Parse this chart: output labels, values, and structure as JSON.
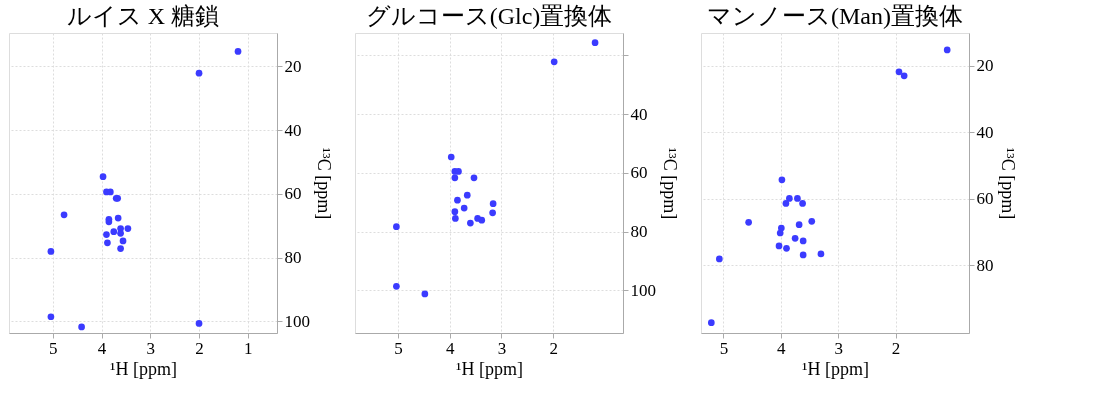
{
  "chart_data": [
    {
      "type": "scatter",
      "title": "ルイス X 糖鎖",
      "xlabel": "¹H [ppm]",
      "ylabel": "¹³C [ppm]",
      "xlim": [
        5.9,
        0.4
      ],
      "xticks": [
        5,
        4,
        3,
        2,
        1
      ],
      "ylim": [
        103.7,
        9.5
      ],
      "yticks": [
        20,
        40,
        60,
        80,
        100
      ],
      "grid": true,
      "marker": "circle",
      "series": [
        {
          "color": "#3b3bff",
          "x": [
            1.2,
            2.0,
            3.97,
            3.9,
            3.82,
            3.7,
            3.67,
            4.77,
            3.66,
            3.85,
            3.85,
            3.61,
            3.46,
            3.75,
            3.61,
            3.9,
            3.56,
            3.88,
            3.61,
            5.04,
            5.04,
            4.41,
            2.0
          ],
          "values": [
            15.3,
            22.1,
            54.6,
            59.4,
            59.4,
            61.4,
            61.4,
            66.6,
            67.6,
            68.0,
            68.8,
            70.9,
            70.9,
            71.9,
            72.4,
            72.8,
            74.8,
            75.4,
            77.2,
            78.1,
            98.6,
            101.8,
            100.7
          ]
        }
      ]
    },
    {
      "type": "scatter",
      "title": "グルコース(Glc)置換体",
      "xlabel": "¹H [ppm]",
      "ylabel": "¹³C [ppm]",
      "xlim": [
        5.83,
        0.65
      ],
      "xticks": [
        5,
        4,
        3,
        2
      ],
      "ylim": [
        114.5,
        12.4
      ],
      "yticks": [
        {
          "value": 20,
          "label": null
        },
        40,
        60,
        80,
        100
      ],
      "grid": true,
      "marker": "circle",
      "series": [
        {
          "color": "#3b3bff",
          "x": [
            1.19,
            1.98,
            3.97,
            3.9,
            3.83,
            3.9,
            3.53,
            3.66,
            3.85,
            3.16,
            3.72,
            3.9,
            3.17,
            3.89,
            3.46,
            3.38,
            3.6,
            5.03,
            5.03,
            4.48
          ],
          "values": [
            15.7,
            22.2,
            54.6,
            59.5,
            59.5,
            61.7,
            61.7,
            67.6,
            69.3,
            70.5,
            72.0,
            73.2,
            73.6,
            75.5,
            75.5,
            76.1,
            77.1,
            78.3,
            98.6,
            101.2
          ]
        }
      ]
    },
    {
      "type": "scatter",
      "title": "マンノース(Man)置換体",
      "xlabel": "¹H [ppm]",
      "ylabel": "¹³C [ppm]",
      "xlim": [
        5.39,
        0.72
      ],
      "xticks": [
        5,
        4,
        3,
        2
      ],
      "ylim": [
        100.4,
        10.1
      ],
      "yticks": [
        20,
        40,
        60,
        80
      ],
      "grid": true,
      "marker": "circle",
      "series": [
        {
          "color": "#3b3bff",
          "x": [
            1.1,
            1.94,
            1.85,
            3.98,
            3.85,
            3.71,
            3.91,
            3.62,
            4.56,
            3.46,
            3.68,
            3.99,
            4.01,
            3.75,
            3.61,
            4.03,
            3.9,
            3.3,
            3.61,
            5.07,
            5.21
          ],
          "values": [
            15.2,
            21.8,
            23.0,
            54.3,
            59.9,
            59.9,
            61.4,
            61.4,
            67.1,
            66.8,
            67.8,
            68.8,
            70.3,
            71.9,
            72.7,
            74.2,
            74.9,
            76.6,
            76.9,
            78.1,
            97.3
          ]
        }
      ]
    }
  ]
}
